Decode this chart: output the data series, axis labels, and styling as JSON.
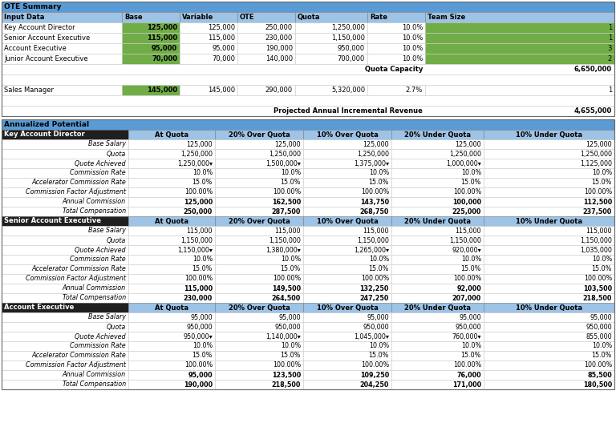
{
  "title_bg": "#5b9bd5",
  "header_bg": "#9dc3e6",
  "green_cell": "#70ad47",
  "white_bg": "#ffffff",
  "sub_header_bg": "#9dc3e6",
  "border_dark": "#555555",
  "border_light": "#cccccc",
  "ote_title": "OTE Summary",
  "input_headers": [
    "Input Data",
    "Base",
    "Variable",
    "OTE",
    "Quota",
    "Rate",
    "Team Size"
  ],
  "input_rows": [
    [
      "Key Account Director",
      "125,000",
      "125,000",
      "250,000",
      "1,250,000",
      "10.0%",
      "1"
    ],
    [
      "Senior Account Executive",
      "115,000",
      "115,000",
      "230,000",
      "1,150,000",
      "10.0%",
      "1"
    ],
    [
      "Account Executive",
      "95,000",
      "95,000",
      "190,000",
      "950,000",
      "10.0%",
      "3"
    ],
    [
      "Junior Account Executive",
      "70,000",
      "70,000",
      "140,000",
      "700,000",
      "10.0%",
      "2"
    ]
  ],
  "quota_capacity_label": "Quota Capacity",
  "quota_capacity_value": "6,650,000",
  "sales_manager_row": [
    "Sales Manager",
    "145,000",
    "145,000",
    "290,000",
    "5,320,000",
    "2.7%",
    "1"
  ],
  "projected_label": "Projected Annual Incremental Revenue",
  "projected_value": "4,655,000",
  "ann_title": "Annualized Potential",
  "kad_rows": [
    [
      "Key Account Director",
      "At Quota",
      "20% Over Quota",
      "10% Over Quota",
      "20% Under Quota",
      "10% Under Quota"
    ],
    [
      "Base Salary",
      "125,000",
      "125,000",
      "125,000",
      "125,000",
      "125,000"
    ],
    [
      "Quota",
      "1,250,000",
      "1,250,000",
      "1,250,000",
      "1,250,000",
      "1,250,000"
    ],
    [
      "Quote Achieved",
      "1,250,000▾",
      "1,500,000▾",
      "1,375,000▾",
      "1,000,000▾",
      "1,125,000"
    ],
    [
      "Commission Rate",
      "10.0%",
      "10.0%",
      "10.0%",
      "10.0%",
      "10.0%"
    ],
    [
      "Accelerator Commission Rate",
      "15.0%",
      "15.0%",
      "15.0%",
      "15.0%",
      "15.0%"
    ],
    [
      "Commission Factor Adjustment",
      "100.00%",
      "100.00%",
      "100.00%",
      "100.00%",
      "100.00%"
    ],
    [
      "Annual Commission",
      "125,000",
      "162,500",
      "143,750",
      "100,000",
      "112,500"
    ],
    [
      "Total Compensation",
      "250,000",
      "287,500",
      "268,750",
      "225,000",
      "237,500"
    ]
  ],
  "sae_rows": [
    [
      "Senior Account Executive",
      "At Quota",
      "20% Over Quota",
      "10% Over Quota",
      "20% Under Quota",
      "10% Under Quota"
    ],
    [
      "Base Salary",
      "115,000",
      "115,000",
      "115,000",
      "115,000",
      "115,000"
    ],
    [
      "Quota",
      "1,150,000",
      "1,150,000",
      "1,150,000",
      "1,150,000",
      "1,150,000"
    ],
    [
      "Quote Achieved",
      "1,150,000▾",
      "1,380,000▾",
      "1,265,000▾",
      "920,000▾",
      "1,035,000"
    ],
    [
      "Commission Rate",
      "10.0%",
      "10.0%",
      "10.0%",
      "10.0%",
      "10.0%"
    ],
    [
      "Accelerator Commission Rate",
      "15.0%",
      "15.0%",
      "15.0%",
      "15.0%",
      "15.0%"
    ],
    [
      "Commission Factor Adjustment",
      "100.00%",
      "100.00%",
      "100.00%",
      "100.00%",
      "100.00%"
    ],
    [
      "Annual Commission",
      "115,000",
      "149,500",
      "132,250",
      "92,000",
      "103,500"
    ],
    [
      "Total Compensation",
      "230,000",
      "264,500",
      "247,250",
      "207,000",
      "218,500"
    ]
  ],
  "ae_rows": [
    [
      "Account Executive",
      "At Quota",
      "20% Over Quota",
      "10% Over Quota",
      "20% Under Quota",
      "10% Under Quota"
    ],
    [
      "Base Salary",
      "95,000",
      "95,000",
      "95,000",
      "95,000",
      "95,000"
    ],
    [
      "Quota",
      "950,000",
      "950,000",
      "950,000",
      "950,000",
      "950,000"
    ],
    [
      "Quote Achieved",
      "950,000▾",
      "1,140,000▾",
      "1,045,000▾",
      "760,000▾",
      "855,000"
    ],
    [
      "Commission Rate",
      "10.0%",
      "10.0%",
      "10.0%",
      "10.0%",
      "10.0%"
    ],
    [
      "Accelerator Commission Rate",
      "15.0%",
      "15.0%",
      "15.0%",
      "15.0%",
      "15.0%"
    ],
    [
      "Commission Factor Adjustment",
      "100.00%",
      "100.00%",
      "100.00%",
      "100.00%",
      "100.00%"
    ],
    [
      "Annual Commission",
      "95,000",
      "123,500",
      "109,250",
      "76,000",
      "85,500"
    ],
    [
      "Total Compensation",
      "190,000",
      "218,500",
      "204,250",
      "171,000",
      "180,500"
    ]
  ]
}
